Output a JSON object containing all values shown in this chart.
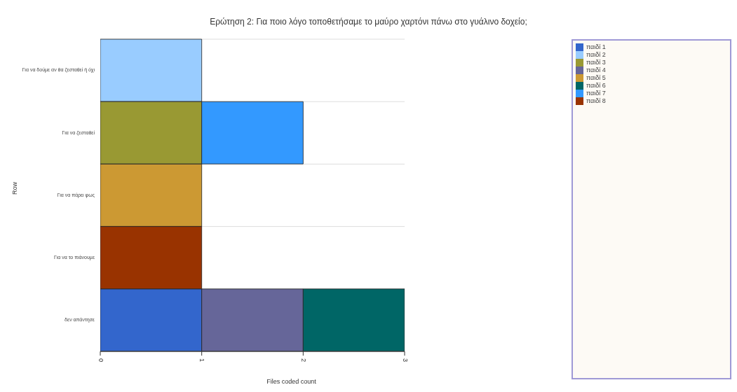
{
  "chart_data": {
    "type": "bar",
    "orientation": "horizontal",
    "stacked": true,
    "title": "Ερώτηση 2: Για ποιο λόγο τοποθετήσαμε το μαύρο χαρτόνι πάνω στο γυάλινο δοχείο;",
    "xlabel": "Files coded count",
    "ylabel": "Row",
    "categories": [
      "Για να δούμε αν θα ζεσταθεί ή όχι",
      "Για να ζεσταθεί",
      "Για να πάρει φως",
      "Για να το πιάνουμε",
      "δεν απάντησε"
    ],
    "series": [
      {
        "name": "παιδί 1",
        "color": "#3366cc",
        "values": [
          null,
          null,
          null,
          null,
          1
        ]
      },
      {
        "name": "παιδί 2",
        "color": "#99ccff",
        "values": [
          1,
          null,
          null,
          null,
          null
        ]
      },
      {
        "name": "παιδί 3",
        "color": "#999933",
        "values": [
          null,
          1,
          null,
          null,
          null
        ]
      },
      {
        "name": "παιδί 4",
        "color": "#666699",
        "values": [
          null,
          null,
          null,
          null,
          1
        ]
      },
      {
        "name": "παιδί 5",
        "color": "#cc9933",
        "values": [
          null,
          null,
          1,
          null,
          null
        ]
      },
      {
        "name": "παιδί 6",
        "color": "#006666",
        "values": [
          null,
          null,
          null,
          null,
          1
        ]
      },
      {
        "name": "παιδί 7",
        "color": "#3399ff",
        "values": [
          null,
          1,
          null,
          null,
          null
        ]
      },
      {
        "name": "παιδί 8",
        "color": "#993300",
        "values": [
          null,
          null,
          null,
          1,
          null
        ]
      }
    ],
    "xlim": [
      0,
      3
    ],
    "xticks": [
      0,
      1,
      2,
      3
    ],
    "grid": "y",
    "legend": "right"
  }
}
